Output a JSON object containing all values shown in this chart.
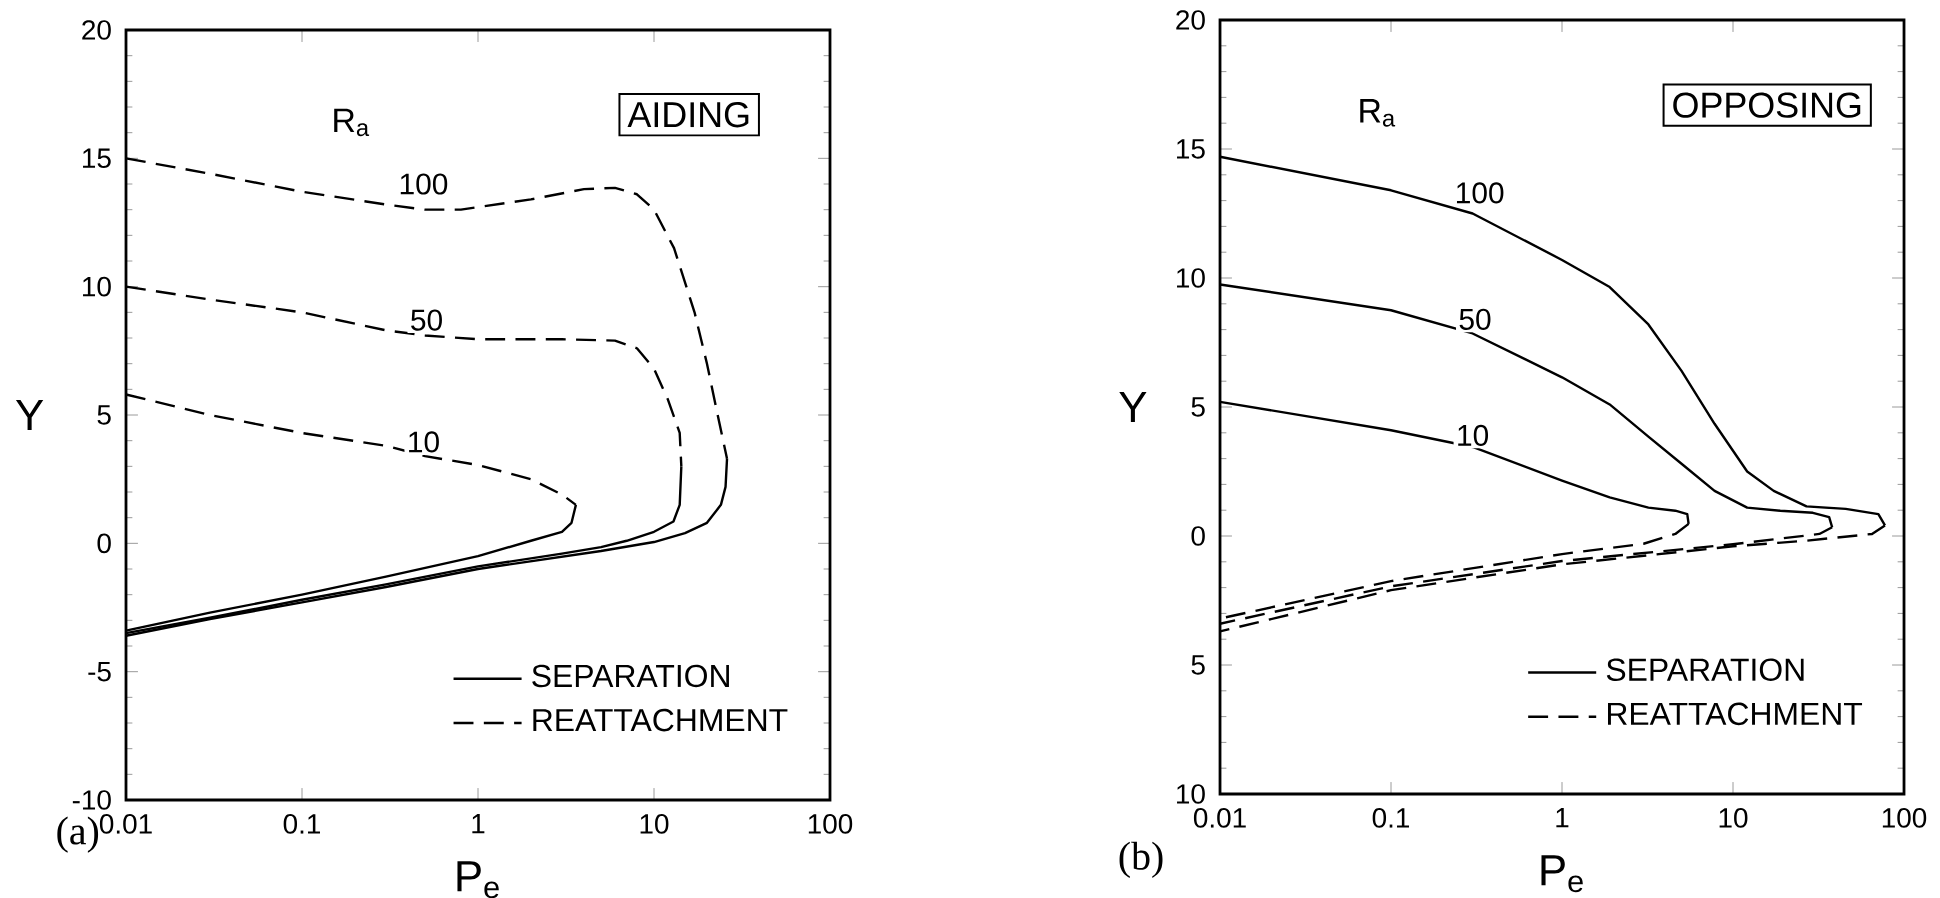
{
  "chart_data": [
    {
      "type": "line",
      "xlabel": "P$_{e}$",
      "ylabel": "Y",
      "log": "x",
      "legend": "bottom right",
      "xlim": [
        0.01,
        100
      ],
      "ylim": [
        -10,
        20
      ],
      "xticks": [
        0.01,
        0.1,
        1,
        10,
        100
      ],
      "yticks": [
        -10,
        -5,
        0,
        5,
        10,
        15,
        20
      ],
      "series": [
        {
          "name": "SEPARATION",
          "color": "#000000",
          "line_style": "solid",
          "x": [
            3.6,
            3.4,
            3.0,
            2.0,
            1.0,
            0.3,
            0.1,
            0.03,
            0.01
          ],
          "values": [
            1.5,
            0.8,
            0.45,
            0.1,
            -0.5,
            -1.3,
            -2.0,
            -2.7,
            -3.4
          ]
        },
        {
          "color": "#000000",
          "line_style": "solid",
          "x": [
            14.3,
            14.0,
            12.9,
            10,
            7,
            5,
            3,
            1,
            0.3,
            0.1,
            0.03,
            0.01
          ],
          "values": [
            3.0,
            1.5,
            0.85,
            0.45,
            0.1,
            -0.15,
            -0.4,
            -0.9,
            -1.6,
            -2.2,
            -2.9,
            -3.5
          ]
        },
        {
          "color": "#000000",
          "line_style": "solid",
          "x": [
            26,
            25.5,
            24,
            20,
            15,
            10,
            5,
            1,
            0.3,
            0.1,
            0.03,
            0.01
          ],
          "values": [
            3.3,
            2.2,
            1.5,
            0.8,
            0.4,
            0.05,
            -0.3,
            -1.0,
            -1.7,
            -2.3,
            -2.95,
            -3.6
          ]
        },
        {
          "name": "REATTACHMENT",
          "color": "#000000",
          "line_style": "dashed",
          "x": [
            0.01,
            0.03,
            0.1,
            0.3,
            0.5,
            1,
            2,
            3,
            3.6
          ],
          "values": [
            5.8,
            5.0,
            4.3,
            3.8,
            3.4,
            3.05,
            2.5,
            1.9,
            1.5
          ]
        },
        {
          "color": "#000000",
          "line_style": "dashed",
          "x": [
            0.01,
            0.03,
            0.1,
            0.3,
            0.5,
            1,
            3,
            6,
            8,
            10,
            12,
            14,
            14.3
          ],
          "values": [
            10,
            9.5,
            9.0,
            8.3,
            8.1,
            7.95,
            7.95,
            7.9,
            7.6,
            6.8,
            5.6,
            4.3,
            3.0
          ]
        },
        {
          "color": "#000000",
          "line_style": "dashed",
          "x": [
            0.01,
            0.03,
            0.1,
            0.3,
            0.5,
            0.8,
            1,
            2,
            4,
            6,
            8,
            10,
            13,
            17,
            20,
            23,
            26
          ],
          "values": [
            15,
            14.4,
            13.7,
            13.2,
            13.0,
            13.0,
            13.1,
            13.4,
            13.8,
            13.85,
            13.6,
            13.0,
            11.5,
            9.0,
            7.0,
            5.0,
            3.3
          ]
        }
      ],
      "annotations": [
        "R$_{a}$",
        "AIDING",
        "(a)",
        {
          "text": "100",
          "x": 0.49,
          "y": 14.0
        },
        {
          "text": "50",
          "x": 0.51,
          "y": 8.7
        },
        {
          "text": "10",
          "x": 0.49,
          "y": 3.95
        }
      ]
    },
    {
      "type": "line",
      "xlabel": "P$_{e}$",
      "ylabel": "Y",
      "log": "x",
      "legend": "bottom right",
      "xlim": [
        0.01,
        100
      ],
      "ylim": [
        -10,
        20
      ],
      "xticks": [
        0.01,
        0.1,
        1,
        10,
        100
      ],
      "yticks": [
        {
          "value": -10,
          "label": "10"
        },
        {
          "value": -5,
          "label": "5"
        },
        0,
        5,
        10,
        15,
        20
      ],
      "series": [
        {
          "name": "SEPARATION",
          "color": "#000000",
          "line_style": "solid",
          "x": [
            0.01,
            0.1,
            0.3,
            1,
            1.9,
            3.2,
            4.6,
            5.4,
            5.5
          ],
          "values": [
            5.2,
            4.1,
            3.45,
            2.15,
            1.5,
            1.1,
            0.98,
            0.85,
            0.47
          ]
        },
        {
          "color": "#000000",
          "line_style": "solid",
          "x": [
            0.01,
            0.1,
            0.3,
            1,
            1.9,
            3.2,
            5,
            7.8,
            12.1,
            18.9,
            29.3,
            36.5,
            38
          ],
          "values": [
            9.75,
            8.75,
            7.85,
            6.15,
            5.1,
            3.85,
            2.8,
            1.75,
            1.1,
            0.98,
            0.9,
            0.73,
            0.34
          ]
        },
        {
          "color": "#000000",
          "line_style": "solid",
          "x": [
            0.01,
            0.1,
            0.3,
            1,
            1.9,
            3.2,
            5,
            7.8,
            12.1,
            17.3,
            26.9,
            45.6,
            70.8,
            77.4
          ],
          "values": [
            14.7,
            13.4,
            12.5,
            10.7,
            9.65,
            8.2,
            6.4,
            4.35,
            2.5,
            1.75,
            1.15,
            1.05,
            0.85,
            0.41
          ]
        },
        {
          "name": "REATTACHMENT",
          "color": "#000000",
          "line_style": "dashed",
          "x": [
            5.5,
            4.6,
            3.0,
            1,
            0.1,
            0.01
          ],
          "values": [
            0.47,
            0.08,
            -0.3,
            -0.7,
            -1.75,
            -3.2
          ]
        },
        {
          "color": "#000000",
          "line_style": "dashed",
          "x": [
            38,
            32,
            10,
            1,
            0.1,
            0.01
          ],
          "values": [
            0.34,
            0.08,
            -0.32,
            -0.97,
            -1.95,
            -3.4
          ]
        },
        {
          "color": "#000000",
          "line_style": "dashed",
          "x": [
            77.4,
            65,
            27,
            10,
            1,
            0.1,
            0.01
          ],
          "values": [
            0.41,
            0.08,
            -0.18,
            -0.4,
            -1.1,
            -2.1,
            -3.7
          ]
        }
      ],
      "annotations": [
        "R$_{a}$",
        "OPPOSING",
        "(b)",
        {
          "text": "100",
          "x": 0.33,
          "y": 13.3
        },
        {
          "text": "50",
          "x": 0.31,
          "y": 8.4
        },
        {
          "text": "10",
          "x": 0.3,
          "y": 3.9
        }
      ]
    }
  ]
}
